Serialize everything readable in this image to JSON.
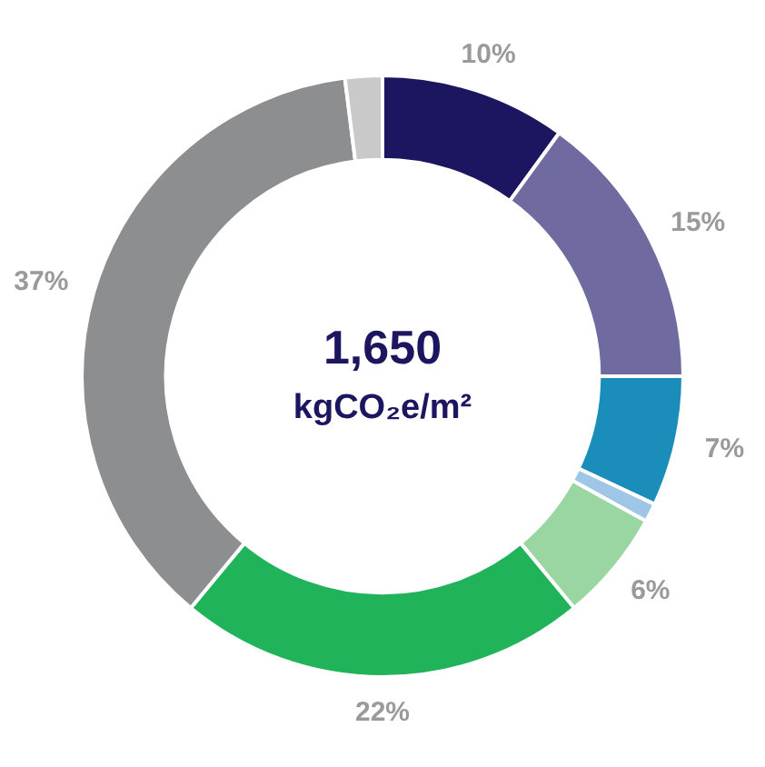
{
  "chart_data": {
    "type": "donut",
    "categories": [
      null,
      null,
      null,
      null,
      null,
      null,
      null,
      null
    ],
    "values": [
      10,
      15,
      7,
      1,
      6,
      22,
      37,
      2
    ],
    "colors": [
      "#1c1660",
      "#6f6a9f",
      "#1b8dbb",
      "#9fc6e6",
      "#9ad6a2",
      "#20b35a",
      "#8d8e90",
      "#c9c9c9"
    ],
    "value_labels": [
      "10%",
      "15%",
      "7%",
      null,
      "6%",
      "22%",
      "37%",
      null
    ],
    "annotations": [
      "1,650",
      "kgCO₂e/m²"
    ],
    "legend": false
  }
}
